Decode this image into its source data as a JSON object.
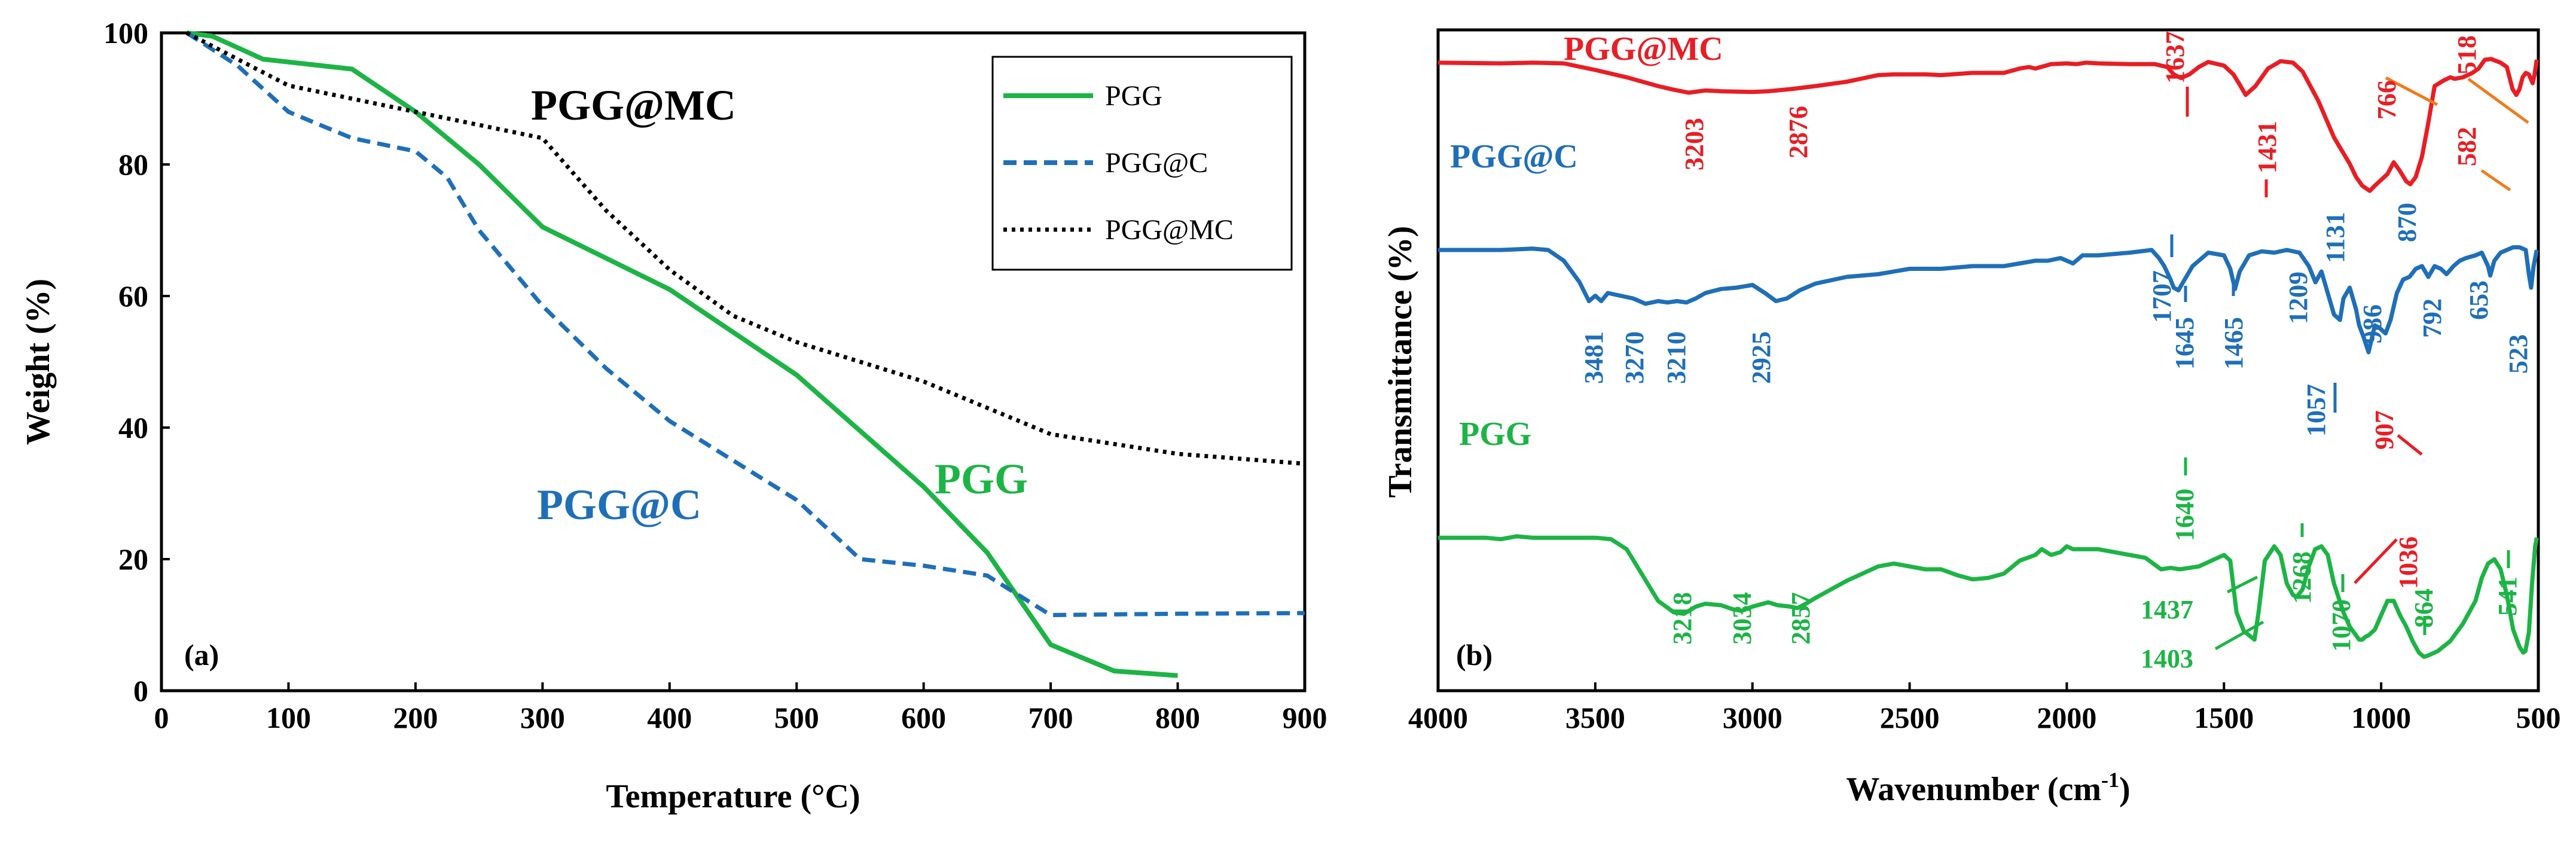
{
  "colors": {
    "green": "#1db446",
    "blue": "#1f6fb8",
    "red": "#e81e25",
    "black": "#000000",
    "orange": "#f07c1e"
  },
  "chart_data": [
    {
      "type": "line",
      "panel_label": "(a)",
      "title": "",
      "xlabel": "Temperature (°C)",
      "ylabel": "Weight (%)",
      "xlim": [
        0,
        900
      ],
      "ylim": [
        0,
        100
      ],
      "xticks": [
        0,
        100,
        200,
        300,
        400,
        500,
        600,
        700,
        800,
        900
      ],
      "yticks": [
        0,
        20,
        40,
        60,
        80,
        100
      ],
      "legend": {
        "position": "top-right",
        "entries": [
          "PGG",
          "PGG@C",
          "PGG@MC"
        ]
      },
      "annotations": [
        {
          "text": "PGG@MC",
          "series": "PGG@MC"
        },
        {
          "text": "PGG@C",
          "series": "PGG@C"
        },
        {
          "text": "PGG",
          "series": "PGG"
        }
      ],
      "series": [
        {
          "name": "PGG",
          "style": "solid",
          "color": "green",
          "x": [
            20,
            40,
            80,
            150,
            200,
            250,
            300,
            400,
            500,
            600,
            650,
            700,
            750,
            800
          ],
          "y": [
            100,
            99.5,
            96,
            94.5,
            88,
            80,
            70.5,
            61,
            48,
            31,
            21,
            7,
            3,
            2.3
          ]
        },
        {
          "name": "PGG@C",
          "style": "dashed",
          "color": "blue",
          "x": [
            20,
            60,
            100,
            150,
            200,
            225,
            250,
            300,
            350,
            400,
            450,
            500,
            550,
            600,
            650,
            700,
            800,
            900
          ],
          "y": [
            100,
            95,
            88,
            84,
            82,
            78,
            70,
            58.5,
            49,
            41,
            35,
            29,
            20,
            19,
            17.5,
            11.5,
            11.7,
            11.8
          ]
        },
        {
          "name": "PGG@MC",
          "style": "dotted",
          "color": "black",
          "x": [
            20,
            100,
            200,
            300,
            350,
            400,
            450,
            500,
            550,
            600,
            650,
            700,
            800,
            900
          ],
          "y": [
            100,
            92,
            88,
            84,
            73,
            64,
            57,
            53,
            50,
            47,
            43,
            39,
            36,
            34.5
          ]
        }
      ]
    },
    {
      "type": "line",
      "panel_label": "(b)",
      "title": "",
      "xlabel_main": "Wavenumber (cm",
      "xlabel_sup": "-1",
      "xlabel_close": ")",
      "ylabel": "Transmittance (%)",
      "xlim": [
        4000,
        500
      ],
      "ylim": [
        0,
        100
      ],
      "xticks": [
        4000,
        3500,
        3000,
        2500,
        2000,
        1500,
        1000,
        500
      ],
      "yticks": [],
      "series": [
        {
          "name": "PGG@MC",
          "color": "red",
          "x": [
            4000,
            3800,
            3700,
            3600,
            3500,
            3400,
            3300,
            3250,
            3203,
            3150,
            3100,
            3000,
            2950,
            2876,
            2800,
            2700,
            2600,
            2550,
            2450,
            2400,
            2300,
            2200,
            2150,
            2120,
            2100,
            2050,
            2000,
            1970,
            1940,
            1900,
            1800,
            1720,
            1680,
            1660,
            1637,
            1610,
            1580,
            1550,
            1500,
            1470,
            1450,
            1431,
            1400,
            1360,
            1320,
            1280,
            1250,
            1200,
            1150,
            1100,
            1080,
            1060,
            1040,
            1036,
            1020,
            1000,
            980,
            960,
            940,
            920,
            907,
            890,
            870,
            850,
            830,
            800,
            780,
            766,
            740,
            710,
            690,
            670,
            650,
            620,
            600,
            582,
            570,
            560,
            550,
            540,
            530,
            518,
            512,
            505
          ],
          "y": [
            96,
            95.5,
            96,
            95.5,
            91,
            86,
            80,
            77.5,
            75.5,
            77,
            76.5,
            76,
            76.5,
            78,
            80,
            83,
            87.5,
            88,
            88,
            87.5,
            89,
            89,
            92,
            93,
            92,
            95,
            95.5,
            95,
            96,
            95.5,
            95,
            95,
            93,
            88,
            85.5,
            88,
            93,
            96.5,
            94,
            88,
            81,
            74,
            80,
            92,
            97,
            96,
            90,
            70,
            45,
            27,
            18,
            12,
            9,
            8.5,
            12,
            16,
            20,
            28,
            22,
            15,
            13,
            18,
            32,
            55,
            80,
            84,
            86,
            85,
            86,
            89,
            92,
            98,
            98.5,
            96,
            93,
            78,
            74,
            78,
            86,
            89,
            88,
            82,
            88,
            98
          ]
        },
        {
          "name": "PGG@C",
          "color": "blue",
          "x": [
            4000,
            3800,
            3700,
            3650,
            3600,
            3550,
            3520,
            3500,
            3481,
            3460,
            3420,
            3380,
            3340,
            3300,
            3270,
            3240,
            3210,
            3180,
            3150,
            3100,
            3050,
            3000,
            2960,
            2925,
            2890,
            2850,
            2800,
            2700,
            2600,
            2500,
            2400,
            2300,
            2200,
            2100,
            2060,
            2020,
            2000,
            1980,
            1950,
            1900,
            1800,
            1730,
            1707,
            1690,
            1670,
            1660,
            1645,
            1630,
            1600,
            1550,
            1500,
            1480,
            1465,
            1450,
            1420,
            1380,
            1340,
            1300,
            1260,
            1230,
            1209,
            1190,
            1170,
            1150,
            1131,
            1120,
            1100,
            1080,
            1070,
            1057,
            1040,
            1020,
            1005,
            986,
            970,
            950,
            930,
            910,
            890,
            870,
            850,
            830,
            810,
            792,
            770,
            750,
            730,
            700,
            680,
            660,
            653,
            640,
            620,
            600,
            580,
            560,
            540,
            530,
            523,
            515,
            505
          ],
          "y": [
            76,
            76,
            76.5,
            76,
            72,
            64,
            57,
            59,
            57,
            60,
            59,
            58,
            56,
            57,
            56.5,
            57,
            56.5,
            58,
            60,
            61.5,
            62,
            63,
            60,
            57,
            58,
            61,
            63.5,
            66,
            67,
            69,
            69,
            70,
            70,
            72,
            72,
            73,
            72,
            71,
            74,
            74,
            75,
            76,
            73,
            70,
            65,
            62,
            61,
            64,
            70,
            75,
            74,
            69,
            61.5,
            68,
            74,
            75.5,
            75,
            76,
            75,
            70,
            64,
            68,
            60,
            52,
            50,
            58,
            62,
            54,
            48,
            44,
            38,
            48,
            47,
            45,
            50,
            60,
            65,
            66,
            69,
            70,
            66,
            70,
            69,
            67,
            70,
            72,
            73,
            74,
            75,
            70,
            66.5,
            72,
            75,
            76,
            77,
            77,
            76,
            67,
            62,
            70,
            76
          ]
        },
        {
          "name": "PGG",
          "color": "green",
          "x": [
            4000,
            3850,
            3800,
            3750,
            3700,
            3600,
            3500,
            3450,
            3400,
            3350,
            3300,
            3250,
            3218,
            3180,
            3150,
            3100,
            3060,
            3034,
            3000,
            2950,
            2920,
            2880,
            2857,
            2830,
            2800,
            2700,
            2600,
            2550,
            2500,
            2450,
            2400,
            2350,
            2300,
            2250,
            2200,
            2150,
            2100,
            2080,
            2050,
            2020,
            2000,
            1980,
            1950,
            1900,
            1850,
            1800,
            1750,
            1700,
            1670,
            1640,
            1610,
            1580,
            1540,
            1500,
            1480,
            1460,
            1437,
            1420,
            1403,
            1390,
            1370,
            1340,
            1320,
            1300,
            1280,
            1268,
            1250,
            1230,
            1210,
            1190,
            1170,
            1150,
            1120,
            1100,
            1080,
            1070,
            1060,
            1050,
            1040,
            1020,
            1000,
            980,
            960,
            940,
            920,
            900,
            880,
            864,
            850,
            820,
            780,
            740,
            700,
            680,
            660,
            640,
            620,
            600,
            580,
            560,
            548,
            541,
            530,
            520,
            510,
            505
          ],
          "y": [
            46,
            46,
            45.5,
            46.5,
            46,
            46,
            46,
            45.5,
            42,
            33,
            24,
            20,
            19.5,
            22,
            23,
            22.5,
            21,
            20.5,
            22,
            23.5,
            22.5,
            22,
            21.5,
            23,
            25,
            31,
            36,
            37,
            36,
            35,
            35,
            33,
            31.5,
            32,
            33.5,
            38,
            40,
            42,
            40,
            41,
            43,
            42,
            42,
            42,
            41,
            40,
            39,
            35,
            35.5,
            35,
            35.5,
            36,
            38,
            40,
            38,
            20,
            13.5,
            12,
            10.5,
            20,
            38,
            43,
            40,
            30,
            26,
            25.5,
            28,
            36,
            42,
            43,
            40,
            30,
            20,
            15,
            12,
            10.5,
            10.5,
            11.5,
            12,
            14,
            19,
            24,
            24,
            19,
            15,
            10,
            6,
            4.5,
            5,
            6.5,
            10,
            16,
            24,
            32,
            37,
            38.5,
            35,
            26,
            14,
            8,
            6,
            6.5,
            13,
            30,
            43,
            46
          ]
        }
      ],
      "labels": {
        "title_red": "PGG@MC",
        "title_blue": "PGG@C",
        "title_green": "PGG",
        "r3203": "3203",
        "r2876": "2876",
        "r1637": "1637",
        "r1431": "1431",
        "r766": "766",
        "r518": "518",
        "r582": "582",
        "r907": "907",
        "r1036": "1036",
        "b3481": "3481",
        "b3270": "3270",
        "b3210": "3210",
        "b2925": "2925",
        "b1707": "1707",
        "b1645": "1645",
        "b1465": "1465",
        "b1209": "1209",
        "b1131": "1131",
        "b1057": "1057",
        "b986": "986",
        "b870": "870",
        "b792": "792",
        "b653": "653",
        "b523": "523",
        "g3218": "3218",
        "g3034": "3034",
        "g2857": "2857",
        "g1640": "1640",
        "g1437": "1437",
        "g1403": "1403",
        "g1268": "1268",
        "g1070": "1070",
        "g864": "864",
        "g541": "541"
      }
    }
  ]
}
